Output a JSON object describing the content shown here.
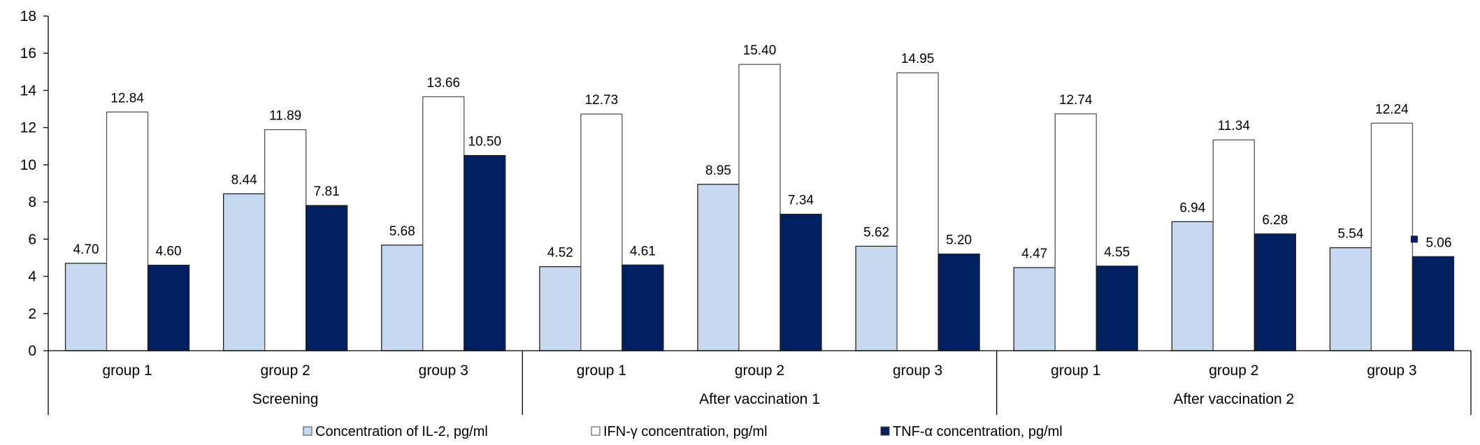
{
  "chart_data": {
    "type": "bar",
    "title": "",
    "xlabel": "",
    "ylabel": "",
    "ylim": [
      0,
      18
    ],
    "yticks": [
      0,
      2,
      4,
      6,
      8,
      10,
      12,
      14,
      16,
      18
    ],
    "grid": false,
    "legend_position": "bottom",
    "categories": [
      "group 1",
      "group 2",
      "group 3",
      "group 1",
      "group 2",
      "group 3",
      "group 1",
      "group 2",
      "group 3"
    ],
    "category_groups": [
      {
        "label": "Screening",
        "span": 3
      },
      {
        "label": "After vaccination 1",
        "span": 3
      },
      {
        "label": "After vaccination 2",
        "span": 3
      }
    ],
    "series": [
      {
        "name": "Concentration of IL-2, pg/ml",
        "color": "#c6d9f0",
        "values": [
          4.7,
          8.44,
          5.68,
          4.52,
          8.95,
          5.62,
          4.47,
          6.94,
          5.54
        ],
        "labels": [
          "4.70",
          "8.44",
          "5.68",
          "4.52",
          "8.95",
          "5.62",
          "4.47",
          "6.94",
          "5.54"
        ]
      },
      {
        "name": "IFN-γ concentration, pg/ml",
        "color": "#ffffff",
        "values": [
          12.84,
          11.89,
          13.66,
          12.73,
          15.4,
          14.95,
          12.74,
          11.34,
          12.24
        ],
        "labels": [
          "12.84",
          "11.89",
          "13.66",
          "12.73",
          "15.40",
          "14.95",
          "12.74",
          "11.34",
          "12.24"
        ]
      },
      {
        "name": "TNF-α concentration, pg/ml",
        "color": "#002060",
        "values": [
          4.6,
          7.81,
          10.5,
          4.61,
          7.34,
          5.2,
          4.55,
          6.28,
          5.06
        ],
        "labels": [
          "4.60",
          "7.81",
          "10.50",
          "4.61",
          "7.34",
          "5.20",
          "4.55",
          "6.28",
          "5.06"
        ]
      }
    ]
  }
}
